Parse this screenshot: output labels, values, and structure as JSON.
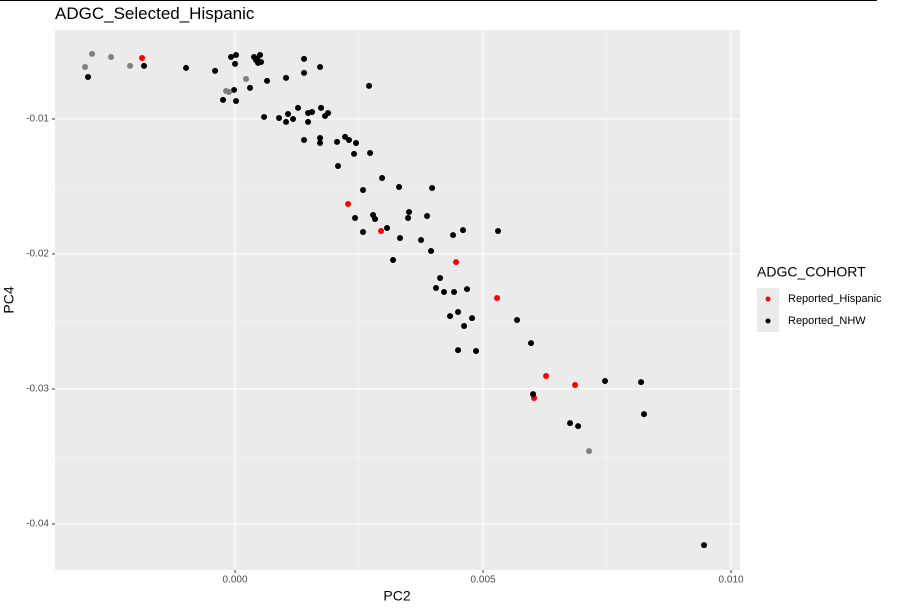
{
  "chart_data": {
    "type": "scatter",
    "title": "ADGC_Selected_Hispanic",
    "x_label": "PC2",
    "y_label": "PC4",
    "legend_title": "ADGC_COHORT",
    "grid": true,
    "legend": "right",
    "xlim": [
      -0.00363,
      0.01018
    ],
    "ylim": [
      -0.04341,
      -0.00341
    ],
    "xticks": [
      {
        "value": 0,
        "label": "0.000"
      },
      {
        "value": 0.005,
        "label": "0.005"
      },
      {
        "value": 0.01,
        "label": "0.010"
      }
    ],
    "yticks": [
      -0.04,
      -0.03,
      -0.02,
      -0.01
    ],
    "series": [
      {
        "name": "Reported_Hispanic",
        "color": "#ff0000",
        "x": [
          -0.001875,
          0.002278,
          0.002943,
          0.004455,
          0.005282,
          0.00627,
          0.006855,
          0.006028
        ],
        "values": [
          -0.00548,
          -0.0163,
          -0.0183,
          -0.0206,
          -0.02326,
          -0.02904,
          -0.02971,
          -0.03067
        ]
      },
      {
        "name": "Reported_NHW",
        "color": "#000000",
        "x": [
          -0.002964,
          -0.001835,
          -0.000988,
          -0.000403,
          -0.000242,
          -8.1e-05,
          -2e-05,
          2e-05,
          2e-05,
          0,
          0.000302,
          0.000383,
          0.000423,
          0.000464,
          0.000504,
          0.000524,
          0.000444,
          0.000585,
          0.000645,
          0.001028,
          0.000887,
          0.001028,
          0.001068,
          0.001169,
          0.00127,
          0.001391,
          0.001391,
          0.001391,
          0.001472,
          0.001472,
          0.001552,
          0.001714,
          0.001734,
          0.001714,
          0.001714,
          0.001814,
          0.001875,
          0.002056,
          0.002076,
          0.002218,
          0.002298,
          0.002399,
          0.002439,
          0.00258,
          0.002722,
          0.002701,
          0.002782,
          0.002822,
          0.002964,
          0.002419,
          0.00258,
          0.003064,
          0.003185,
          0.003306,
          0.003326,
          0.003508,
          0.003488,
          0.00375,
          0.003871,
          0.003951,
          0.003972,
          0.004052,
          0.004133,
          0.004213,
          0.004334,
          0.004395,
          0.004415,
          0.004496,
          0.004496,
          0.004596,
          0.004617,
          0.004677,
          0.004778,
          0.004859,
          0.005302,
          0.005685,
          0.005967,
          0.006008,
          0.006754,
          0.006916,
          0.007459,
          0.008185,
          0.008245,
          0.009455
        ],
        "values": [
          -0.00689,
          -0.00607,
          -0.00622,
          -0.00644,
          -0.00859,
          -0.00541,
          -0.00785,
          -0.00867,
          -0.00526,
          -0.00592,
          -0.0077,
          -0.00541,
          -0.00563,
          -0.00585,
          -0.00526,
          -0.00578,
          -0.00555,
          -0.00985,
          -0.00718,
          -0.00696,
          -0.00993,
          -0.01022,
          -0.00963,
          -0.01,
          -0.00918,
          -0.00555,
          -0.00659,
          -0.01156,
          -0.00956,
          -0.01022,
          -0.00948,
          -0.00615,
          -0.00918,
          -0.01141,
          -0.01178,
          -0.00978,
          -0.00956,
          -0.0117,
          -0.01348,
          -0.01133,
          -0.01156,
          -0.01259,
          -0.01178,
          -0.01526,
          -0.01252,
          -0.00755,
          -0.01711,
          -0.01741,
          -0.01437,
          -0.01734,
          -0.01837,
          -0.01808,
          -0.02045,
          -0.01504,
          -0.01882,
          -0.01689,
          -0.01734,
          -0.01897,
          -0.01719,
          -0.01978,
          -0.01511,
          -0.02252,
          -0.02178,
          -0.02282,
          -0.0246,
          -0.0186,
          -0.02282,
          -0.0243,
          -0.02712,
          -0.01823,
          -0.02534,
          -0.0226,
          -0.02475,
          -0.02719,
          -0.0183,
          -0.02489,
          -0.0266,
          -0.03038,
          -0.03253,
          -0.03275,
          -0.02941,
          -0.02949,
          -0.03186,
          -0.04157
        ]
      },
      {
        "name": null,
        "color": "#7f7f7f",
        "x": [
          -0.003024,
          -0.002883,
          -0.0025,
          -0.002117,
          -0.000181,
          -0.000121,
          0.000222,
          0.007137
        ],
        "values": [
          -0.00615,
          -0.00518,
          -0.00541,
          -0.00607,
          -0.00793,
          -0.008,
          -0.00704,
          -0.0346
        ]
      }
    ]
  }
}
